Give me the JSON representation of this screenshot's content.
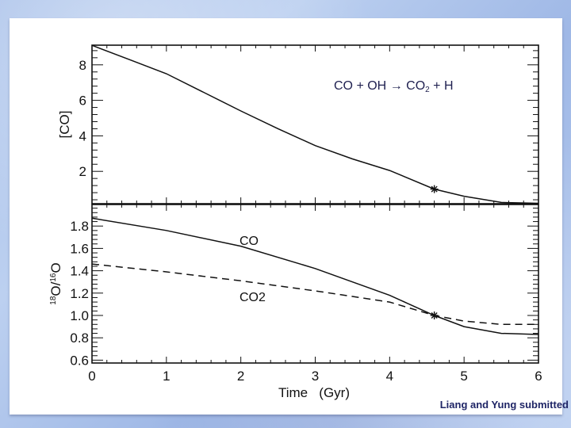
{
  "slide": {
    "reaction_parts": {
      "lhs": "CO + OH",
      "arrow": "→",
      "product": "CO",
      "sub": "2",
      "rhs": " + H"
    },
    "credit": "Liang and Yung submitted",
    "background_color": "#b0c6ee",
    "text_color": "#1f2050"
  },
  "chart_data": [
    {
      "type": "line",
      "panel": "top",
      "title": "CO + OH → CO2 + H",
      "xlabel": "Time   (Gyr)",
      "ylabel": "[CO]",
      "xlim": [
        0,
        6
      ],
      "ylim": [
        0.2,
        9.1
      ],
      "x_ticks": [
        0,
        1,
        2,
        3,
        4,
        5,
        6
      ],
      "y_ticks": [
        2,
        4,
        6,
        8
      ],
      "grid": false,
      "series": [
        {
          "name": "[CO]",
          "style": "solid",
          "x": [
            0,
            0.5,
            1,
            1.5,
            2,
            2.5,
            3,
            3.5,
            4,
            4.6,
            5,
            5.5,
            6
          ],
          "values": [
            9.1,
            8.3,
            7.5,
            6.45,
            5.4,
            4.4,
            3.45,
            2.7,
            2.05,
            1.0,
            0.6,
            0.25,
            0.2
          ]
        }
      ],
      "markers": [
        {
          "x": 4.6,
          "y": 1.0,
          "symbol": "asterisk"
        }
      ]
    },
    {
      "type": "line",
      "panel": "bottom",
      "xlabel": "Time   (Gyr)",
      "ylabel": "18O/16O",
      "xlim": [
        0,
        6
      ],
      "ylim": [
        0.55,
        2.0
      ],
      "x_ticks": [
        0,
        1,
        2,
        3,
        4,
        5,
        6
      ],
      "y_ticks": [
        0.6,
        0.8,
        1.0,
        1.2,
        1.4,
        1.6,
        1.8
      ],
      "grid": false,
      "series": [
        {
          "name": "CO",
          "style": "solid",
          "x": [
            0,
            1,
            2,
            3,
            4,
            4.6,
            5,
            5.5,
            6
          ],
          "values": [
            1.87,
            1.76,
            1.62,
            1.42,
            1.18,
            1.0,
            0.9,
            0.84,
            0.83
          ]
        },
        {
          "name": "CO2",
          "style": "dashed",
          "x": [
            0,
            1,
            2,
            3,
            4,
            4.6,
            5,
            5.5,
            6
          ],
          "values": [
            1.46,
            1.39,
            1.31,
            1.22,
            1.12,
            1.0,
            0.95,
            0.92,
            0.92
          ]
        }
      ],
      "annotations": [
        {
          "text": "CO",
          "x": 2.0,
          "y": 1.67
        },
        {
          "text": "CO2",
          "x": 2.0,
          "y": 1.18
        }
      ],
      "markers": [
        {
          "x": 4.6,
          "y": 1.0,
          "symbol": "asterisk"
        }
      ]
    }
  ],
  "labels": {
    "top_ylabel": "[CO]",
    "bottom_ylabel_sup1": "18",
    "bottom_ylabel_o1": "O/",
    "bottom_ylabel_sup2": "16",
    "bottom_ylabel_o2": "O",
    "xlabel": "Time   (Gyr)",
    "curve_co": "CO",
    "curve_co2": "CO2",
    "x_ticks": [
      "0",
      "1",
      "2",
      "3",
      "4",
      "5",
      "6"
    ],
    "top_y_ticks": [
      "8",
      "6",
      "4",
      "2"
    ],
    "bottom_y_ticks": [
      "1.8",
      "1.6",
      "1.4",
      "1.2",
      "1.0",
      "0.8",
      "0.6"
    ]
  }
}
